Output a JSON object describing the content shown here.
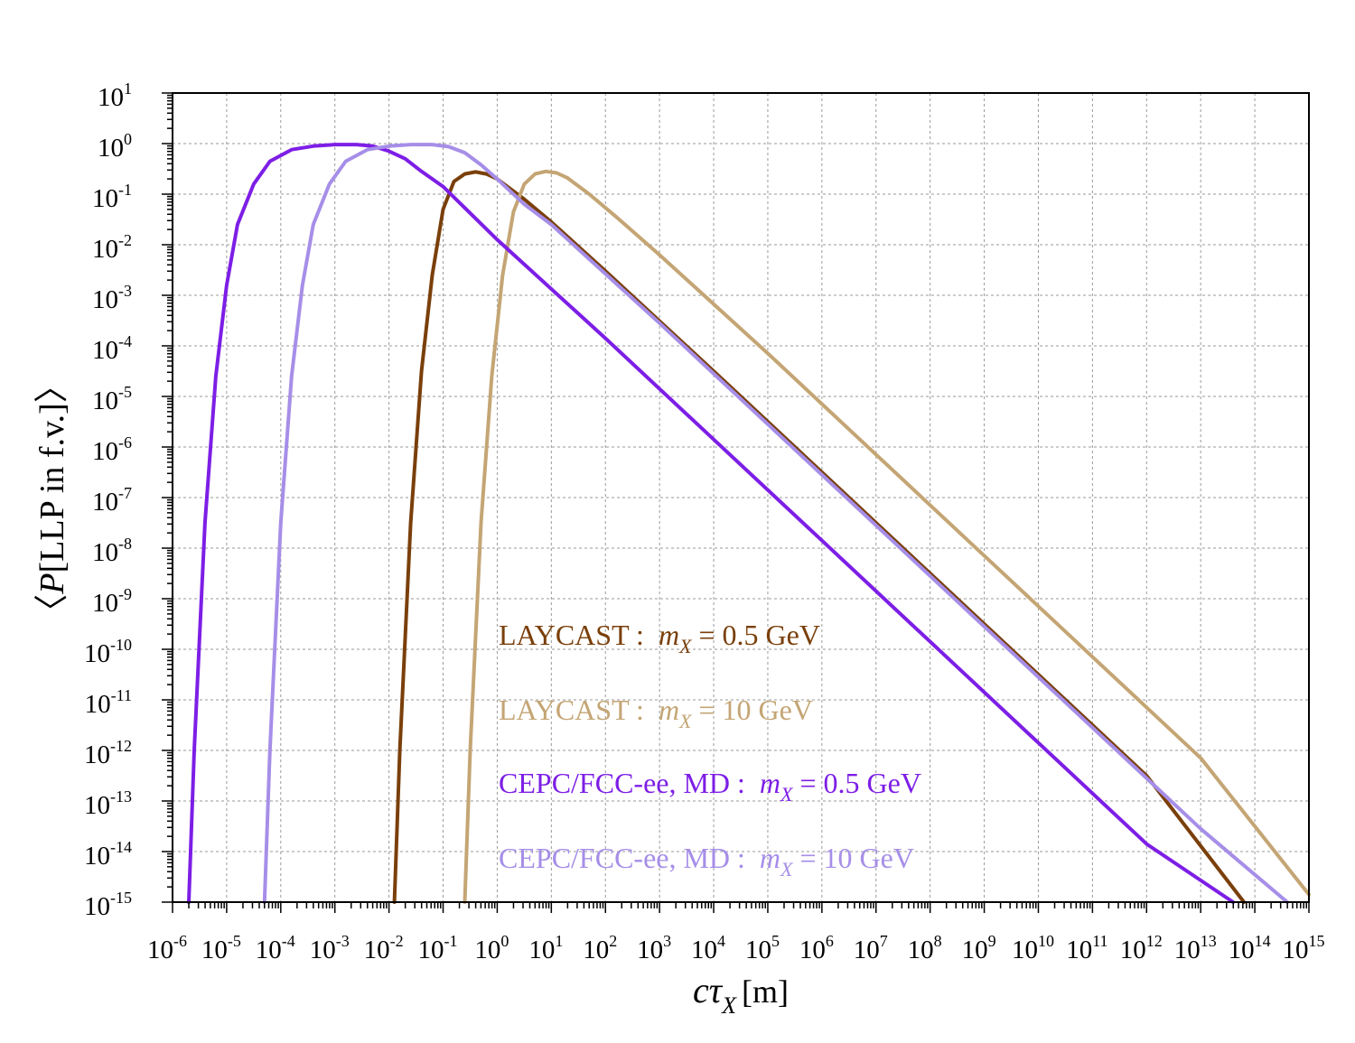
{
  "chart_data": {
    "type": "line",
    "xscale": "log",
    "yscale": "log",
    "xlabel_main": "cτ",
    "xlabel_sub": "X",
    "xlabel_unit": "[m]",
    "ylabel_open": "〈",
    "ylabel_var": "P",
    "ylabel_rest": "[LLP in f.v.]",
    "ylabel_close": "〉",
    "x_exp_range": [
      -6,
      15
    ],
    "y_exp_range": [
      -15,
      1
    ],
    "x_tick_base": "10",
    "y_tick_base": "10",
    "x_tick_exponents": [
      "-6",
      "-5",
      "-4",
      "-3",
      "-2",
      "-1",
      "0",
      "1",
      "2",
      "3",
      "4",
      "5",
      "6",
      "7",
      "8",
      "9",
      "10",
      "11",
      "12",
      "13",
      "14",
      "15"
    ],
    "y_tick_exponents": [
      "1",
      "0",
      "-1",
      "-2",
      "-3",
      "-4",
      "-5",
      "-6",
      "-7",
      "-8",
      "-9",
      "-10",
      "-11",
      "-12",
      "-13",
      "-14",
      "-15"
    ],
    "grid": true,
    "series": [
      {
        "name": "LAYCAST : mX = 0.5 GeV",
        "detector": "LAYCAST",
        "mass": "0.5 GeV",
        "color": "#7a3f0a",
        "x_log10": [
          -1.9,
          -1.8,
          -1.6,
          -1.4,
          -1.2,
          -1.0,
          -0.8,
          -0.6,
          -0.4,
          -0.2,
          0.0,
          0.5,
          1.0,
          2.0,
          4.0,
          6.0,
          8.0,
          10.0,
          12.0,
          13.8
        ],
        "y_log10": [
          -15.0,
          -12.0,
          -7.5,
          -4.5,
          -2.6,
          -1.3,
          -0.75,
          -0.6,
          -0.56,
          -0.6,
          -0.7,
          -1.1,
          -1.55,
          -2.52,
          -4.5,
          -6.5,
          -8.5,
          -10.5,
          -12.5,
          -15.0
        ]
      },
      {
        "name": "LAYCAST : mX = 10 GeV",
        "detector": "LAYCAST",
        "mass": "10 GeV",
        "color": "#c4a574",
        "x_log10": [
          -0.6,
          -0.5,
          -0.3,
          -0.1,
          0.1,
          0.3,
          0.5,
          0.7,
          0.9,
          1.1,
          1.3,
          1.7,
          2.2,
          3.0,
          5.0,
          7.0,
          9.0,
          11.0,
          13.0,
          15.0
        ],
        "y_log10": [
          -15.0,
          -12.0,
          -7.5,
          -4.6,
          -2.6,
          -1.35,
          -0.8,
          -0.6,
          -0.55,
          -0.58,
          -0.68,
          -1.0,
          -1.45,
          -2.2,
          -4.15,
          -6.15,
          -8.15,
          -10.15,
          -12.15,
          -14.85
        ]
      },
      {
        "name": "CEPC/FCC-ee, MD : mX = 0.5 GeV",
        "detector": "CEPC/FCC-ee, MD",
        "mass": "0.5 GeV",
        "color": "#7d1ee6",
        "x_log10": [
          -5.7,
          -5.6,
          -5.4,
          -5.2,
          -5.0,
          -4.8,
          -4.5,
          -4.2,
          -3.8,
          -3.4,
          -3.0,
          -2.6,
          -2.3,
          -2.0,
          -1.7,
          -1.4,
          -1.0,
          0.0,
          2.0,
          4.0,
          6.0,
          8.0,
          10.0,
          12.0,
          13.6
        ],
        "y_log10": [
          -15.0,
          -12.0,
          -7.5,
          -4.6,
          -2.8,
          -1.6,
          -0.8,
          -0.35,
          -0.12,
          -0.05,
          -0.02,
          -0.02,
          -0.05,
          -0.15,
          -0.3,
          -0.55,
          -0.85,
          -1.9,
          -3.85,
          -5.85,
          -7.85,
          -9.85,
          -11.85,
          -13.85,
          -15.0
        ]
      },
      {
        "name": "CEPC/FCC-ee, MD : mX = 10 GeV",
        "detector": "CEPC/FCC-ee, MD",
        "mass": "10 GeV",
        "color": "#a68ee8",
        "x_log10": [
          -4.3,
          -4.2,
          -4.0,
          -3.8,
          -3.6,
          -3.4,
          -3.1,
          -2.8,
          -2.4,
          -2.0,
          -1.6,
          -1.2,
          -0.9,
          -0.6,
          -0.3,
          0.0,
          0.5,
          1.0,
          3.0,
          5.0,
          7.0,
          9.0,
          11.0,
          13.0,
          14.6
        ],
        "y_log10": [
          -15.0,
          -12.0,
          -7.5,
          -4.6,
          -2.8,
          -1.6,
          -0.8,
          -0.35,
          -0.12,
          -0.05,
          -0.02,
          -0.02,
          -0.06,
          -0.18,
          -0.42,
          -0.7,
          -1.2,
          -1.6,
          -3.55,
          -5.55,
          -7.55,
          -9.55,
          -11.55,
          -13.55,
          -15.0
        ]
      }
    ],
    "legend": [
      {
        "label": "LAYCAST",
        "sep": " : ",
        "var": "m",
        "var_sub": "X",
        "eq": " = 0.5 GeV",
        "color": "#7a3f0a"
      },
      {
        "label": "LAYCAST",
        "sep": " : ",
        "var": "m",
        "var_sub": "X",
        "eq": " = 10 GeV",
        "color": "#c4a574"
      },
      {
        "label": "CEPC/FCC-ee, MD",
        "sep": " : ",
        "var": "m",
        "var_sub": "X",
        "eq": " = 0.5 GeV",
        "color": "#7d1ee6"
      },
      {
        "label": "CEPC/FCC-ee, MD",
        "sep": " : ",
        "var": "m",
        "var_sub": "X",
        "eq": " = 10 GeV",
        "color": "#a68ee8"
      }
    ]
  }
}
